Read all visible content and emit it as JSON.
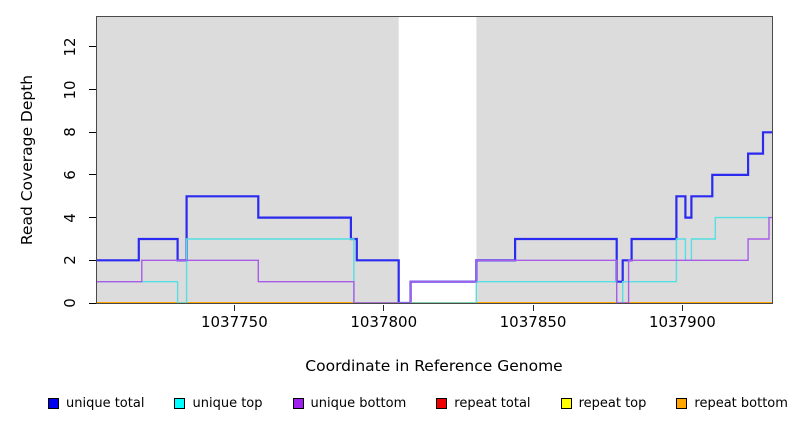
{
  "chart_data": {
    "type": "line-step",
    "title": "",
    "xlabel": "Coordinate in Reference Genome",
    "ylabel": "Read Coverage Depth",
    "xlim": [
      1037704,
      1037930
    ],
    "ylim": [
      0,
      13.4
    ],
    "x_ticks": [
      1037750,
      1037800,
      1037850,
      1037900
    ],
    "y_ticks": [
      0,
      2,
      4,
      6,
      8,
      10,
      12
    ],
    "plot_background": "#dcdcdc",
    "page_background": "#ffffff",
    "grid": false,
    "legend_position": "bottom",
    "gap_region": {
      "from": 1037805,
      "to": 1037831,
      "color": "#ffffff"
    },
    "series": [
      {
        "name": "repeat total",
        "color": "#ee0000",
        "width": 1.4,
        "points": [
          [
            1037704,
            0
          ],
          [
            1037930,
            0
          ]
        ]
      },
      {
        "name": "repeat top",
        "color": "#ffff00",
        "width": 1.4,
        "points": [
          [
            1037704,
            0
          ],
          [
            1037930,
            0
          ]
        ]
      },
      {
        "name": "repeat bottom",
        "color": "#ffa500",
        "width": 2,
        "points": [
          [
            1037704,
            0
          ],
          [
            1037930,
            0
          ]
        ]
      },
      {
        "name": "unique total",
        "color": "#2a2af0",
        "width": 2.2,
        "points": [
          [
            1037704,
            2
          ],
          [
            1037718,
            3
          ],
          [
            1037731,
            2
          ],
          [
            1037734,
            5
          ],
          [
            1037758,
            4
          ],
          [
            1037789,
            3
          ],
          [
            1037791,
            2
          ],
          [
            1037805,
            0
          ],
          [
            1037809,
            1
          ],
          [
            1037831,
            2
          ],
          [
            1037844,
            3
          ],
          [
            1037878,
            1
          ],
          [
            1037880,
            2
          ],
          [
            1037883,
            3
          ],
          [
            1037898,
            5
          ],
          [
            1037901,
            4
          ],
          [
            1037903,
            5
          ],
          [
            1037910,
            6
          ],
          [
            1037922,
            7
          ],
          [
            1037927,
            8
          ],
          [
            1037930,
            8
          ]
        ]
      },
      {
        "name": "unique top",
        "color": "#55dfe2",
        "width": 1.4,
        "points": [
          [
            1037704,
            1
          ],
          [
            1037731,
            0
          ],
          [
            1037734,
            3
          ],
          [
            1037790,
            0
          ],
          [
            1037831,
            1
          ],
          [
            1037878,
            0
          ],
          [
            1037880,
            1
          ],
          [
            1037898,
            3
          ],
          [
            1037901,
            2
          ],
          [
            1037903,
            3
          ],
          [
            1037911,
            4
          ],
          [
            1037930,
            4
          ]
        ]
      },
      {
        "name": "unique bottom",
        "color": "#a85ce8",
        "width": 1.4,
        "points": [
          [
            1037704,
            1
          ],
          [
            1037719,
            2
          ],
          [
            1037758,
            1
          ],
          [
            1037790,
            0
          ],
          [
            1037809,
            1
          ],
          [
            1037831,
            2
          ],
          [
            1037878,
            0
          ],
          [
            1037882,
            2
          ],
          [
            1037922,
            3
          ],
          [
            1037929,
            4
          ],
          [
            1037930,
            4
          ]
        ]
      }
    ],
    "legend": [
      {
        "label": "unique total",
        "color": "#0000ee"
      },
      {
        "label": "unique top",
        "color": "#00ffff"
      },
      {
        "label": "unique bottom",
        "color": "#a020f0"
      },
      {
        "label": "repeat total",
        "color": "#ee0000"
      },
      {
        "label": "repeat top",
        "color": "#ffff00"
      },
      {
        "label": "repeat bottom",
        "color": "#ffa500"
      }
    ]
  }
}
